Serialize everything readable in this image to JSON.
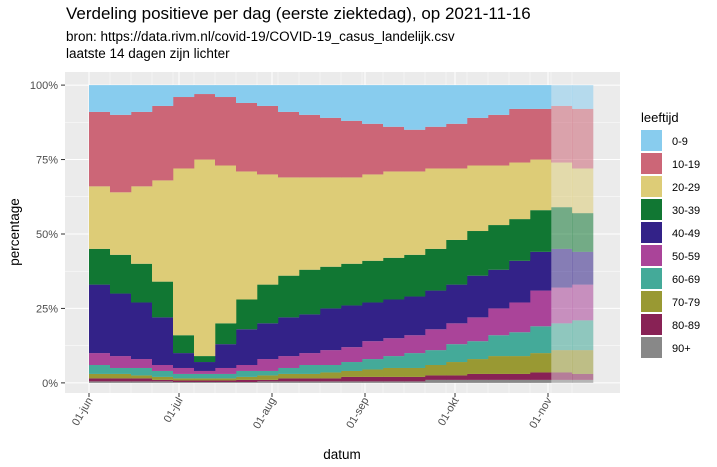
{
  "chart_data": {
    "type": "stacked_bar",
    "title": "Verdeling positieve per dag (eerste ziektedag), op 2021-11-16",
    "subtitle": [
      "bron: https://data.rivm.nl/covid-19/COVID-19_casus_landelijk.csv",
      "laatste 14 dagen zijn lichter"
    ],
    "x_label": "datum",
    "y_label": "percentage",
    "legend_title": "leeftijd",
    "legend_position": "right",
    "grid": true,
    "x": [
      "2021-06-01",
      "2021-06-08",
      "2021-06-15",
      "2021-06-22",
      "2021-06-29",
      "2021-07-06",
      "2021-07-13",
      "2021-07-20",
      "2021-07-27",
      "2021-08-03",
      "2021-08-10",
      "2021-08-17",
      "2021-08-24",
      "2021-08-31",
      "2021-09-07",
      "2021-09-14",
      "2021-09-21",
      "2021-09-28",
      "2021-10-05",
      "2021-10-12",
      "2021-10-19",
      "2021-10-26",
      "2021-11-02",
      "2021-11-09"
    ],
    "xlim": [
      "2021-05-24",
      "2021-11-25"
    ],
    "xticks": [
      {
        "value": "2021-06-01",
        "label": "01-jun"
      },
      {
        "value": "2021-07-01",
        "label": "01-jul"
      },
      {
        "value": "2021-08-01",
        "label": "01-aug"
      },
      {
        "value": "2021-09-01",
        "label": "01-sep"
      },
      {
        "value": "2021-10-01",
        "label": "01-okt"
      },
      {
        "value": "2021-11-01",
        "label": "01-nov"
      }
    ],
    "ylim": [
      -3.4,
      104.4
    ],
    "yticks": [
      {
        "value": 0,
        "label": "0%"
      },
      {
        "value": 25,
        "label": "25%"
      },
      {
        "value": 50,
        "label": "50%"
      },
      {
        "value": 75,
        "label": "75%"
      },
      {
        "value": 100,
        "label": "100%"
      }
    ],
    "series": [
      {
        "name": "0-9",
        "color": "#88ccee",
        "values": [
          9,
          10,
          9,
          7,
          4,
          3,
          4,
          6,
          7,
          9,
          10,
          11,
          12,
          13,
          14,
          15,
          14,
          13,
          11,
          10,
          8,
          8,
          7,
          8
        ]
      },
      {
        "name": "10-19",
        "color": "#cc6677",
        "values": [
          25,
          26,
          25,
          25,
          24,
          22,
          23,
          23,
          23,
          22,
          21,
          20,
          19,
          17,
          15,
          14,
          14,
          15,
          16,
          17,
          18,
          17,
          19,
          20
        ]
      },
      {
        "name": "20-29",
        "color": "#ddcc77",
        "values": [
          21,
          21,
          26,
          34,
          56,
          66,
          53,
          43,
          37,
          33,
          31,
          30,
          29,
          29,
          29,
          28,
          27,
          24,
          22,
          20,
          19,
          17,
          15,
          15
        ]
      },
      {
        "name": "30-39",
        "color": "#117733",
        "values": [
          12,
          13,
          13,
          12,
          6,
          2,
          7,
          10,
          13,
          14,
          15,
          14,
          14,
          14,
          14,
          14,
          14,
          15,
          15,
          15,
          14,
          14,
          14,
          13
        ]
      },
      {
        "name": "40-49",
        "color": "#332288",
        "values": [
          23,
          21,
          19,
          16,
          5,
          3,
          8,
          12,
          12,
          13,
          13,
          14,
          14,
          13,
          13,
          13,
          13,
          13,
          14,
          13,
          14,
          13,
          13,
          11
        ]
      },
      {
        "name": "50-59",
        "color": "#aa4499",
        "values": [
          4,
          4,
          3,
          2,
          2,
          1,
          2,
          2,
          4,
          4,
          4,
          5,
          5,
          6,
          6,
          6,
          7,
          7,
          8,
          9,
          10,
          12,
          12,
          12
        ]
      },
      {
        "name": "60-69",
        "color": "#44aa99",
        "values": [
          3,
          2,
          2.5,
          2,
          1.5,
          1.5,
          1.5,
          2,
          1.5,
          2,
          3,
          2.5,
          3,
          3.5,
          4,
          5,
          5,
          6,
          6,
          7,
          8,
          9,
          9,
          10
        ]
      },
      {
        "name": "70-79",
        "color": "#999933",
        "values": [
          1.5,
          1.5,
          1,
          1,
          0.7,
          0.7,
          0.7,
          1,
          1.5,
          1.5,
          1.5,
          2,
          2,
          2.5,
          3,
          3,
          3.5,
          4.5,
          5,
          6,
          6,
          6.5,
          7.5,
          8
        ]
      },
      {
        "name": "80-89",
        "color": "#882255",
        "values": [
          1,
          1,
          1,
          0.5,
          0.5,
          0.5,
          0.5,
          0.7,
          0.5,
          1,
          1,
          1,
          1.5,
          1.5,
          1.5,
          1.5,
          1.5,
          1.5,
          2,
          2,
          2,
          2.5,
          2.5,
          2
        ]
      },
      {
        "name": "90+",
        "color": "#888888",
        "values": [
          0.5,
          0.5,
          0.5,
          0.5,
          0.3,
          0.3,
          0.3,
          0.3,
          0.5,
          0.5,
          0.5,
          0.5,
          0.5,
          0.5,
          0.5,
          0.5,
          1,
          1,
          1,
          1,
          1,
          1,
          1,
          1
        ]
      }
    ]
  }
}
